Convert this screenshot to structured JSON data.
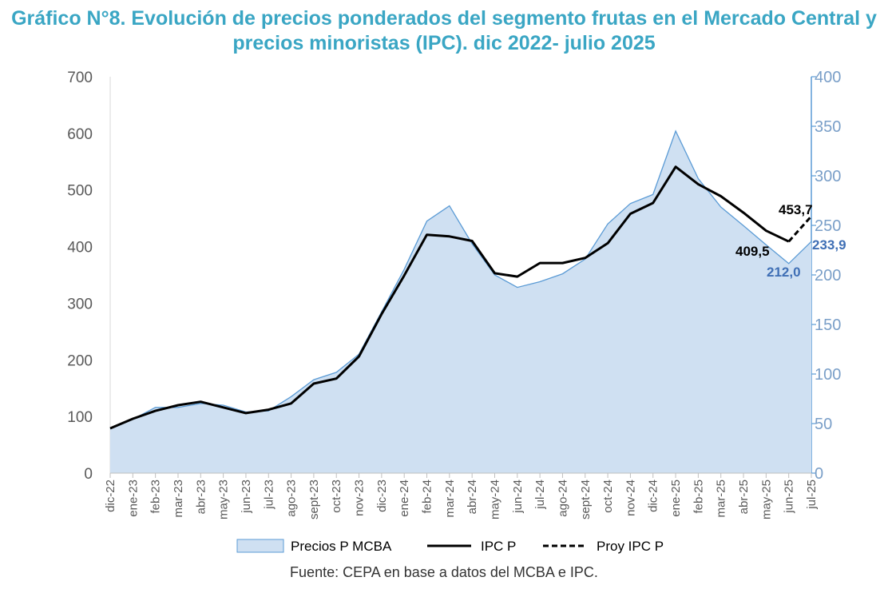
{
  "title": "Gráfico N°8. Evolución de precios ponderados del segmento frutas en el Mercado Central y precios minoristas (IPC). dic 2022- julio 2025",
  "source": "Fuente: CEPA en base a datos del MCBA e IPC.",
  "chart_data": {
    "type": "area",
    "categories": [
      "dic-22",
      "ene-23",
      "feb-23",
      "mar-23",
      "abr-23",
      "may-23",
      "jun-23",
      "jul-23",
      "ago-23",
      "sept-23",
      "oct-23",
      "nov-23",
      "dic-23",
      "ene-24",
      "feb-24",
      "mar-24",
      "abr-24",
      "may-24",
      "jun-24",
      "jul-24",
      "ago-24",
      "sept-24",
      "oct-24",
      "nov-24",
      "dic-24",
      "ene-25",
      "feb-25",
      "mar-25",
      "abr-25",
      "may-25",
      "jun-25",
      "jul-25"
    ],
    "y_left": {
      "min": 0,
      "max": 700,
      "ticks": [
        0,
        100,
        200,
        300,
        400,
        500,
        600,
        700
      ]
    },
    "y_right": {
      "min": 0,
      "max": 400,
      "ticks": [
        0,
        50,
        100,
        150,
        200,
        250,
        300,
        350,
        400
      ]
    },
    "series": [
      {
        "name": "Precios P MCBA",
        "kind": "area",
        "axis": "left",
        "color": "#cfe0f2",
        "edge_color": "#5b9bd5",
        "values": [
          78,
          95,
          116,
          116,
          123,
          120,
          108,
          110,
          135,
          165,
          178,
          210,
          285,
          360,
          445,
          472,
          405,
          350,
          328,
          338,
          352,
          378,
          440,
          476,
          492,
          604,
          520,
          470,
          437,
          403,
          370,
          409
        ]
      },
      {
        "name": "IPC P",
        "kind": "line",
        "axis": "left",
        "color": "#000000",
        "values": [
          79,
          96,
          110,
          120,
          126,
          116,
          106,
          112,
          123,
          158,
          167,
          206,
          281,
          349,
          421,
          418,
          410,
          353,
          347,
          371,
          371,
          380,
          406,
          458,
          477,
          541,
          510,
          489,
          460,
          428,
          409,
          null
        ]
      },
      {
        "name": "Proy IPC P",
        "kind": "dashed",
        "axis": "left",
        "color": "#000000",
        "values": [
          null,
          null,
          null,
          null,
          null,
          null,
          null,
          null,
          null,
          null,
          null,
          null,
          null,
          null,
          null,
          null,
          null,
          null,
          null,
          null,
          null,
          null,
          null,
          null,
          null,
          null,
          null,
          null,
          null,
          null,
          409,
          453.7
        ]
      }
    ],
    "annotations": [
      {
        "text": "453,7",
        "color": "#000000"
      },
      {
        "text": "409,5",
        "color": "#000000"
      },
      {
        "text": "233,9",
        "color": "#3f6fb5"
      },
      {
        "text": "212,0",
        "color": "#3f6fb5"
      }
    ],
    "legend": {
      "position": "bottom"
    }
  }
}
